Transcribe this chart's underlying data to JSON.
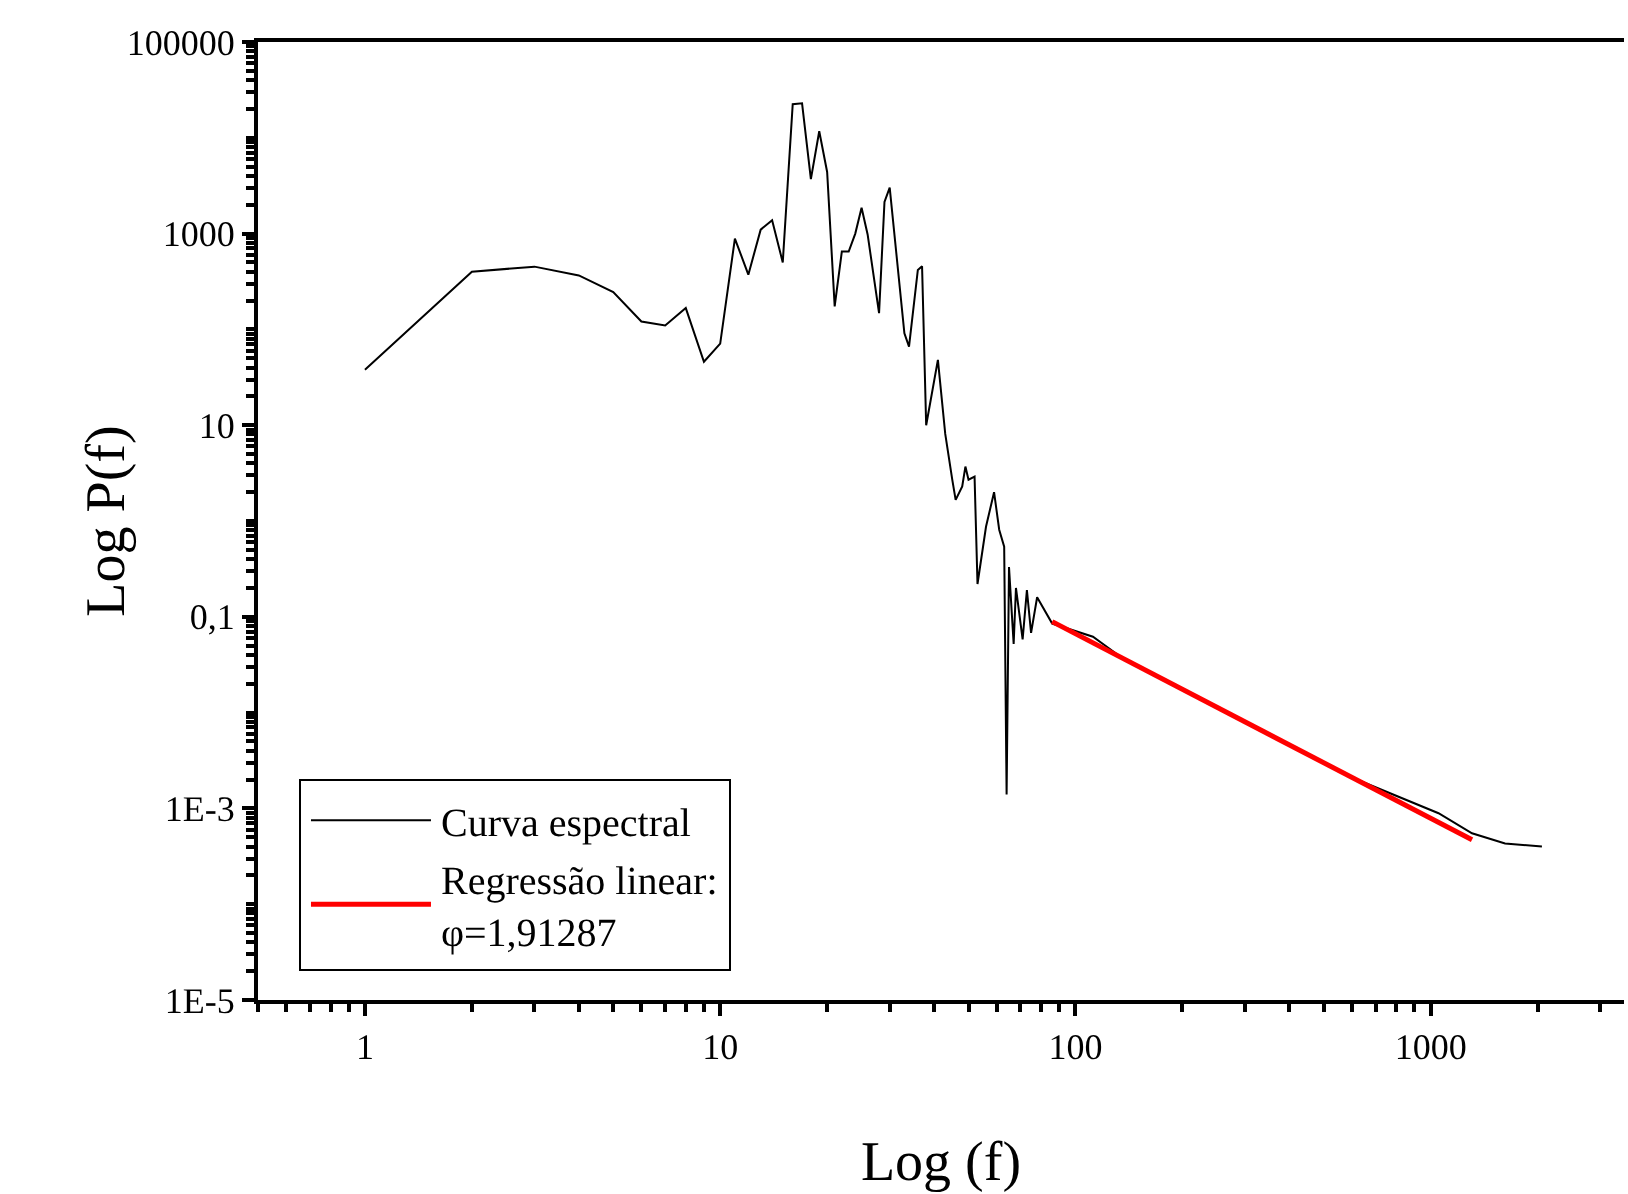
{
  "chart_data": {
    "type": "line",
    "xlabel": "Log (f)",
    "ylabel": "Log P(f)",
    "log": "xy",
    "xlim": [
      0.5,
      3500
    ],
    "xticks": [
      1,
      10,
      100,
      1000
    ],
    "ylim": [
      1e-05,
      100000
    ],
    "yticks": [
      {
        "value": 100000,
        "label": "100000"
      },
      {
        "value": 1000,
        "label": "1000"
      },
      {
        "value": 10,
        "label": "10"
      },
      {
        "value": 0.1,
        "label": "0,1"
      },
      {
        "value": 0.001,
        "label": "1E-3"
      },
      {
        "value": 1e-05,
        "label": "1E-5"
      }
    ],
    "grid": false,
    "legend": "bottom left",
    "series": [
      {
        "name": "Curva espectral",
        "color": "#000000",
        "x": [
          1,
          2,
          3,
          4,
          5,
          6,
          7,
          8,
          9,
          10,
          11,
          12,
          13,
          14,
          15,
          16,
          17,
          18,
          19,
          20,
          21,
          22,
          23,
          24,
          25,
          26,
          28,
          29,
          30,
          33,
          34,
          36,
          37,
          38,
          41,
          43,
          45,
          46,
          48,
          49,
          50,
          52,
          53,
          56,
          59,
          61,
          63,
          64,
          65,
          67,
          68,
          71,
          73,
          75,
          78,
          86,
          112,
          133,
          300,
          600,
          1052,
          1307,
          1619,
          2056
        ],
        "values": [
          38,
          400,
          452,
          366,
          245,
          121,
          110,
          167,
          46,
          71,
          887,
          373,
          1100,
          1380,
          500,
          22400,
          22900,
          3700,
          11700,
          4400,
          174,
          650,
          650,
          1000,
          1860,
          980,
          148,
          2140,
          3020,
          91,
          66,
          417,
          457,
          10,
          48,
          8.1,
          2.7,
          1.66,
          2.3,
          3.7,
          2.7,
          2.9,
          0.22,
          0.87,
          2.0,
          0.81,
          0.54,
          0.0014,
          0.33,
          0.052,
          0.2,
          0.058,
          0.19,
          0.068,
          0.16,
          0.085,
          0.062,
          0.039,
          0.0079,
          0.0021,
          0.00089,
          0.00055,
          0.00043,
          0.0004
        ]
      },
      {
        "name": "Regressão linear:\nφ=1,91287",
        "color": "#ff0000",
        "x": [
          86,
          1307
        ],
        "values": [
          0.089,
          0.00047
        ]
      }
    ]
  }
}
